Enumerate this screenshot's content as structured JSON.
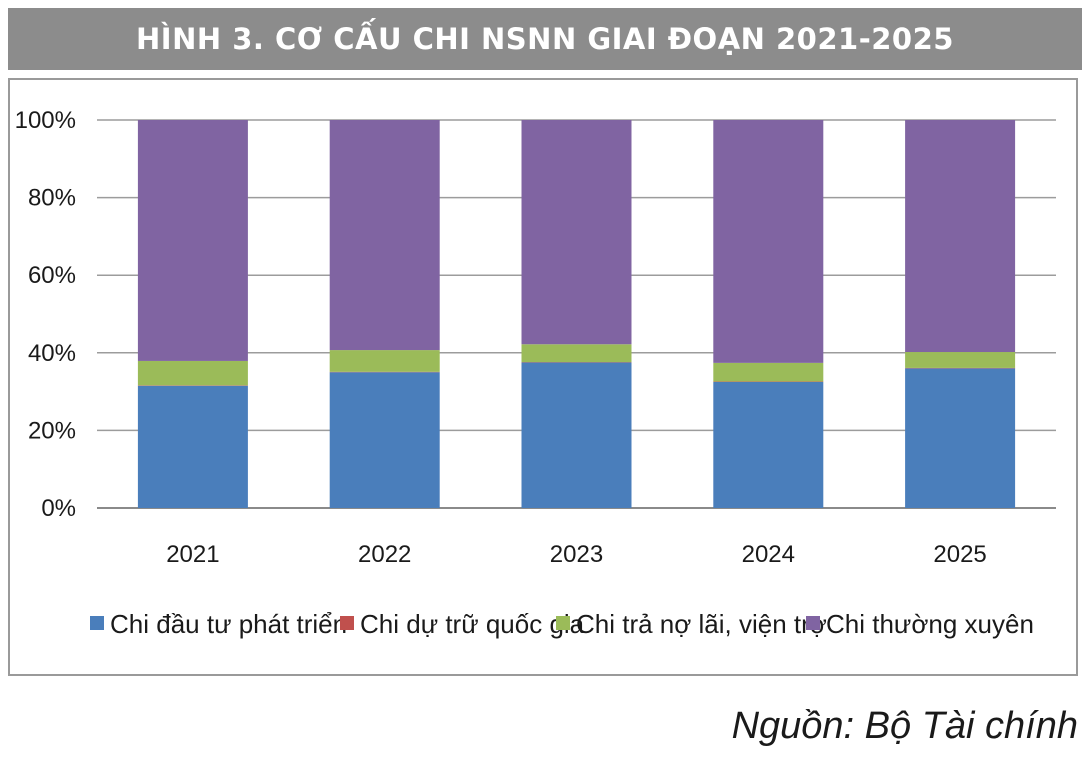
{
  "title": "HÌNH 3. CƠ CẤU CHI NSNN GIAI ĐOẠN 2021-2025",
  "source": "Nguồn: Bộ Tài chính",
  "chart_data": {
    "type": "bar",
    "stacked": true,
    "percent": true,
    "title": "HÌNH 3. CƠ CẤU CHI NSNN GIAI ĐOẠN 2021-2025",
    "categories": [
      "2021",
      "2022",
      "2023",
      "2024",
      "2025"
    ],
    "y_ticks": [
      "0%",
      "20%",
      "40%",
      "60%",
      "80%",
      "100%"
    ],
    "ylim": [
      0,
      100
    ],
    "grid": true,
    "legend_position": "bottom",
    "series": [
      {
        "name": "Chi đầu tư phát triển",
        "color": "#4a7ebb",
        "values": [
          31.5,
          35,
          37.5,
          32.5,
          36
        ]
      },
      {
        "name": "Chi dự trữ quốc gia",
        "color": "#c0504d",
        "values": [
          0.1,
          0.1,
          0.1,
          0.1,
          0.1
        ]
      },
      {
        "name": "Chi trả nợ lãi, viện trợ",
        "color": "#9bbb59",
        "values": [
          6.3,
          5.6,
          4.6,
          4.8,
          4.1
        ]
      },
      {
        "name": "Chi thường xuyên",
        "color": "#8064a2",
        "values": [
          62.1,
          59.3,
          57.8,
          62.6,
          59.8
        ]
      }
    ]
  }
}
